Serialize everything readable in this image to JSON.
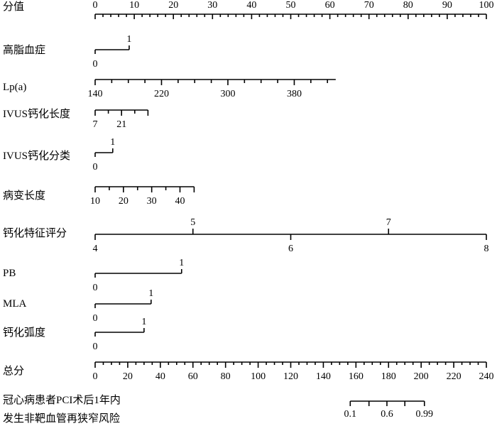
{
  "chart_data": {
    "type": "nomogram",
    "title": "",
    "points_row": {
      "label": "分值",
      "min": 0,
      "max": 100,
      "major_step": 10,
      "minor_step": 2,
      "tick_labels": [
        0,
        10,
        20,
        30,
        40,
        50,
        60,
        70,
        80,
        90,
        100
      ]
    },
    "variables": [
      {
        "key": "hyperlipidemia",
        "label": "高脂血症",
        "kind": "binary",
        "values": [
          {
            "text": "0",
            "points": 0,
            "side": "below"
          },
          {
            "text": "1",
            "points": 8.7,
            "side": "above"
          }
        ]
      },
      {
        "key": "lpa",
        "label": "Lp(a)",
        "kind": "continuous",
        "value_min": 140,
        "value_max": 430,
        "points_at_min": 0,
        "points_at_max": 61.5,
        "minor_step": 20,
        "labels": [
          {
            "text": "140",
            "value": 140
          },
          {
            "text": "220",
            "value": 220
          },
          {
            "text": "300",
            "value": 300
          },
          {
            "text": "380",
            "value": 380
          }
        ],
        "label_side": "below"
      },
      {
        "key": "ivus_length",
        "label": "IVUS钙化长度",
        "kind": "continuous",
        "value_min": 7,
        "value_max": 35,
        "points_at_min": 0,
        "points_at_max": 13.5,
        "minor_step": 7,
        "labels": [
          {
            "text": "7",
            "value": 7
          },
          {
            "text": "21",
            "value": 21
          }
        ],
        "label_side": "below"
      },
      {
        "key": "ivus_class",
        "label": "IVUS钙化分类",
        "kind": "binary",
        "values": [
          {
            "text": "0",
            "points": 0,
            "side": "below"
          },
          {
            "text": "1",
            "points": 4.5,
            "side": "above"
          }
        ]
      },
      {
        "key": "lesion_length",
        "label": "病变长度",
        "kind": "continuous",
        "value_min": 10,
        "value_max": 45,
        "points_at_min": 0,
        "points_at_max": 25.3,
        "minor_step": 5,
        "labels": [
          {
            "text": "10",
            "value": 10
          },
          {
            "text": "20",
            "value": 20
          },
          {
            "text": "30",
            "value": 30
          },
          {
            "text": "40",
            "value": 40
          }
        ],
        "label_side": "below"
      },
      {
        "key": "calc_score",
        "label": "钙化特征评分",
        "kind": "continuous",
        "value_min": 4,
        "value_max": 8,
        "points_at_min": 0,
        "points_at_max": 100,
        "minor_step": 1,
        "labels": [
          {
            "text": "4",
            "value": 4,
            "side": "below"
          },
          {
            "text": "5",
            "value": 5,
            "side": "above"
          },
          {
            "text": "6",
            "value": 6,
            "side": "below"
          },
          {
            "text": "7",
            "value": 7,
            "side": "above"
          },
          {
            "text": "8",
            "value": 8,
            "side": "below"
          }
        ]
      },
      {
        "key": "pb",
        "label": "PB",
        "kind": "binary",
        "values": [
          {
            "text": "0",
            "points": 0,
            "side": "below"
          },
          {
            "text": "1",
            "points": 22.1,
            "side": "above"
          }
        ]
      },
      {
        "key": "mla",
        "label": "MLA",
        "kind": "binary",
        "values": [
          {
            "text": "0",
            "points": 0,
            "side": "below"
          },
          {
            "text": "1",
            "points": 14.3,
            "side": "above"
          }
        ]
      },
      {
        "key": "calc_arc",
        "label": "钙化弧度",
        "kind": "binary",
        "values": [
          {
            "text": "0",
            "points": 0,
            "side": "below"
          },
          {
            "text": "1",
            "points": 12.5,
            "side": "above"
          }
        ]
      }
    ],
    "total_points": {
      "label": "总分",
      "min": 0,
      "max": 240,
      "major_step": 20,
      "minor_step": 5,
      "tick_labels": [
        0,
        20,
        40,
        60,
        80,
        100,
        120,
        140,
        160,
        180,
        200,
        220,
        240
      ]
    },
    "risk": {
      "label_line1": "冠心病患者PCI术后1年内",
      "label_line2": "发生非靶血管再狭窄风险",
      "points_start": 156.5,
      "points_end": 202,
      "ticks_total_points": [
        156.5,
        168,
        179,
        190,
        202
      ],
      "labels": [
        {
          "text": "0.1",
          "total": 156.5
        },
        {
          "text": "0.6",
          "total": 179
        },
        {
          "text": "0.99",
          "total": 202
        }
      ]
    },
    "grid": false,
    "legend": "none"
  }
}
